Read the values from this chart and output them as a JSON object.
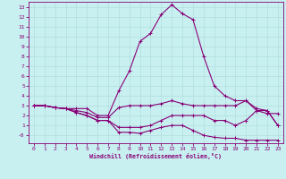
{
  "xlabel": "Windchill (Refroidissement éolien,°C)",
  "background_color": "#c8f0f0",
  "grid_color": "#b0dede",
  "line_color": "#880077",
  "xlim": [
    -0.5,
    23.5
  ],
  "ylim": [
    -0.8,
    13.5
  ],
  "xticks": [
    0,
    1,
    2,
    3,
    4,
    5,
    6,
    7,
    8,
    9,
    10,
    11,
    12,
    13,
    14,
    15,
    16,
    17,
    18,
    19,
    20,
    21,
    22,
    23
  ],
  "ytick_vals": [
    0,
    1,
    2,
    3,
    4,
    5,
    6,
    7,
    8,
    9,
    10,
    11,
    12,
    13
  ],
  "ytick_labels": [
    "-0",
    "1",
    "2",
    "3",
    "4",
    "5",
    "6",
    "7",
    "8",
    "9",
    "10",
    "11",
    "12",
    "13"
  ],
  "curves": [
    {
      "x": [
        0,
        1,
        2,
        3,
        4,
        5,
        6,
        7,
        8,
        9,
        10,
        11,
        12,
        13,
        14,
        15,
        16,
        17,
        18,
        19,
        20,
        21,
        22,
        23
      ],
      "y": [
        3,
        3,
        2.8,
        2.7,
        2.7,
        2.7,
        2.0,
        2.0,
        4.5,
        6.5,
        9.5,
        10.3,
        12.2,
        13.2,
        12.3,
        11.7,
        8.0,
        5.0,
        4.0,
        3.5,
        3.5,
        2.5,
        2.2,
        2.2
      ]
    },
    {
      "x": [
        0,
        1,
        2,
        3,
        4,
        5,
        6,
        7,
        8,
        9,
        10,
        11,
        12,
        13,
        14,
        15,
        16,
        17,
        18,
        19,
        20,
        21,
        22,
        23
      ],
      "y": [
        3,
        3,
        2.8,
        2.7,
        2.5,
        2.3,
        1.8,
        1.8,
        2.8,
        3.0,
        3.0,
        3.0,
        3.2,
        3.5,
        3.2,
        3.0,
        3.0,
        3.0,
        3.0,
        3.0,
        3.5,
        2.7,
        2.5,
        1.0
      ]
    },
    {
      "x": [
        0,
        1,
        2,
        3,
        4,
        5,
        6,
        7,
        8,
        9,
        10,
        11,
        12,
        13,
        14,
        15,
        16,
        17,
        18,
        19,
        20,
        21,
        22,
        23
      ],
      "y": [
        3,
        3,
        2.8,
        2.7,
        2.3,
        2.0,
        1.5,
        1.5,
        0.8,
        0.8,
        0.8,
        1.0,
        1.5,
        2.0,
        2.0,
        2.0,
        2.0,
        1.5,
        1.5,
        1.0,
        1.5,
        2.5,
        2.5,
        1.0
      ]
    },
    {
      "x": [
        0,
        1,
        2,
        3,
        4,
        5,
        6,
        7,
        8,
        9,
        10,
        11,
        12,
        13,
        14,
        15,
        16,
        17,
        18,
        19,
        20,
        21,
        22,
        23
      ],
      "y": [
        3,
        3,
        2.8,
        2.7,
        2.3,
        2.0,
        1.5,
        1.5,
        0.3,
        0.3,
        0.2,
        0.5,
        0.8,
        1.0,
        1.0,
        0.5,
        0.0,
        -0.2,
        -0.3,
        -0.3,
        -0.5,
        -0.5,
        -0.5,
        -0.5
      ]
    }
  ]
}
